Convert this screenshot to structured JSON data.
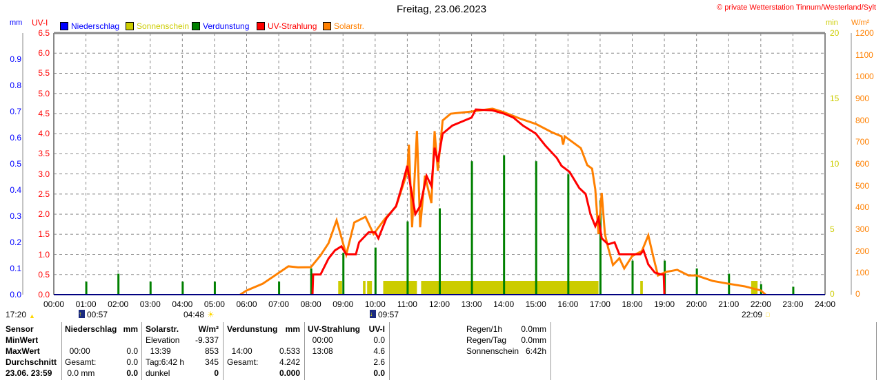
{
  "title": "Freitag, 23.06.2023",
  "copyright": "© private Wetterstation Tinnum/Westerland/Sylt",
  "axes": {
    "mm": "mm",
    "uv": "UV-I",
    "min": "min",
    "wm2": "W/m²"
  },
  "legend": [
    {
      "label": "Niederschlag",
      "color": "#0000ff",
      "text": "#0000ff"
    },
    {
      "label": "Sonnenschein",
      "color": "#cccc00",
      "text": "#cccc00"
    },
    {
      "label": "Verdunstung",
      "color": "#008000",
      "text": "#0000ff"
    },
    {
      "label": "UV-Strahlung",
      "color": "#ff0000",
      "text": "#ff0000"
    },
    {
      "label": "Solarstr.",
      "color": "#ff8000",
      "text": "#ff8000"
    }
  ],
  "chart_data": {
    "type": "line",
    "title": "Freitag, 23.06.2023",
    "x_ticks": [
      "00:00",
      "01:00",
      "02:00",
      "03:00",
      "04:00",
      "05:00",
      "06:00",
      "07:00",
      "08:00",
      "09:00",
      "10:00",
      "11:00",
      "12:00",
      "13:00",
      "14:00",
      "15:00",
      "16:00",
      "17:00",
      "18:00",
      "19:00",
      "20:00",
      "21:00",
      "22:00",
      "23:00",
      "24:00"
    ],
    "mm_ticks": [
      "0.0",
      "0.1",
      "0.2",
      "0.3",
      "0.4",
      "0.5",
      "0.6",
      "0.7",
      "0.8",
      "0.9"
    ],
    "uv_ticks": [
      "0.0",
      "0.5",
      "1.0",
      "1.5",
      "2.0",
      "2.5",
      "3.0",
      "3.5",
      "4.0",
      "4.5",
      "5.0",
      "5.5",
      "6.0",
      "6.5"
    ],
    "min_ticks": [
      "0",
      "5",
      "10",
      "15",
      "20"
    ],
    "wm2_ticks": [
      "0",
      "100",
      "200",
      "300",
      "400",
      "500",
      "600",
      "700",
      "800",
      "900",
      "1000",
      "1100",
      "1200"
    ],
    "xlim": [
      0,
      24
    ],
    "uv_ylim": [
      0,
      6.5
    ],
    "mm_ylim": [
      0,
      1.0
    ],
    "wm2_ylim": [
      0,
      1200
    ],
    "solar": [
      [
        5.8,
        0
      ],
      [
        6,
        19
      ],
      [
        6.5,
        50
      ],
      [
        7,
        100
      ],
      [
        7.3,
        130
      ],
      [
        7.6,
        125
      ],
      [
        8,
        126
      ],
      [
        8.3,
        180
      ],
      [
        8.55,
        236
      ],
      [
        8.8,
        341
      ],
      [
        9.1,
        183
      ],
      [
        9.35,
        331
      ],
      [
        9.7,
        357
      ],
      [
        9.95,
        278
      ],
      [
        10.3,
        347
      ],
      [
        10.65,
        404
      ],
      [
        11,
        562
      ],
      [
        11.05,
        688
      ],
      [
        11.15,
        309
      ],
      [
        11.3,
        751
      ],
      [
        11.4,
        309
      ],
      [
        11.55,
        546
      ],
      [
        11.75,
        420
      ],
      [
        11.85,
        750
      ],
      [
        11.95,
        568
      ],
      [
        12.1,
        799
      ],
      [
        12.35,
        830
      ],
      [
        13,
        840
      ],
      [
        13.65,
        853
      ],
      [
        14,
        837
      ],
      [
        14.5,
        808
      ],
      [
        15,
        783
      ],
      [
        15.5,
        745
      ],
      [
        15.8,
        726
      ],
      [
        15.85,
        688
      ],
      [
        15.9,
        726
      ],
      [
        16.4,
        672
      ],
      [
        16.6,
        594
      ],
      [
        16.75,
        578
      ],
      [
        16.85,
        483
      ],
      [
        16.95,
        278
      ],
      [
        17.05,
        467
      ],
      [
        17.15,
        278
      ],
      [
        17.25,
        215
      ],
      [
        17.4,
        136
      ],
      [
        17.6,
        167
      ],
      [
        17.75,
        120
      ],
      [
        18,
        177
      ],
      [
        18.3,
        200
      ],
      [
        18.5,
        272
      ],
      [
        18.65,
        177
      ],
      [
        18.8,
        88
      ],
      [
        19.05,
        104
      ],
      [
        19.4,
        114
      ],
      [
        19.75,
        88
      ],
      [
        20,
        88
      ],
      [
        20.5,
        63
      ],
      [
        21,
        50
      ],
      [
        21.5,
        38
      ],
      [
        22,
        19
      ],
      [
        22.15,
        0
      ]
    ],
    "uv": [
      [
        8.05,
        0
      ],
      [
        8.07,
        0.5
      ],
      [
        8.3,
        0.5
      ],
      [
        8.55,
        0.9
      ],
      [
        8.75,
        1.1
      ],
      [
        8.95,
        1.2
      ],
      [
        9.1,
        1.0
      ],
      [
        9.4,
        1.0
      ],
      [
        9.5,
        1.3
      ],
      [
        9.8,
        1.55
      ],
      [
        10,
        1.55
      ],
      [
        10.1,
        1.4
      ],
      [
        10.35,
        1.9
      ],
      [
        10.65,
        2.2
      ],
      [
        10.8,
        2.6
      ],
      [
        11,
        3.2
      ],
      [
        11.1,
        2.7
      ],
      [
        11.25,
        2.0
      ],
      [
        11.4,
        2.2
      ],
      [
        11.6,
        2.95
      ],
      [
        11.75,
        2.7
      ],
      [
        11.85,
        3.65
      ],
      [
        11.95,
        3.3
      ],
      [
        12.1,
        4.0
      ],
      [
        12.4,
        4.2
      ],
      [
        12.7,
        4.3
      ],
      [
        13,
        4.4
      ],
      [
        13.13,
        4.6
      ],
      [
        13.65,
        4.58
      ],
      [
        14,
        4.5
      ],
      [
        14.3,
        4.4
      ],
      [
        14.6,
        4.2
      ],
      [
        15,
        4.0
      ],
      [
        15.3,
        3.7
      ],
      [
        15.65,
        3.4
      ],
      [
        15.8,
        3.2
      ],
      [
        16.05,
        3.05
      ],
      [
        16.35,
        2.65
      ],
      [
        16.55,
        2.5
      ],
      [
        16.7,
        2.0
      ],
      [
        16.85,
        1.7
      ],
      [
        16.95,
        1.9
      ],
      [
        17.05,
        1.4
      ],
      [
        17.25,
        1.25
      ],
      [
        17.45,
        1.3
      ],
      [
        17.6,
        1.0
      ],
      [
        18.25,
        1.0
      ],
      [
        18.35,
        1.1
      ],
      [
        18.5,
        0.75
      ],
      [
        18.7,
        0.55
      ],
      [
        18.9,
        0.5
      ],
      [
        18.98,
        0.5
      ],
      [
        19,
        0
      ]
    ],
    "verdunstung": [
      [
        1,
        0.05
      ],
      [
        2,
        0.08
      ],
      [
        3,
        0.05
      ],
      [
        4,
        0.05
      ],
      [
        5,
        0.05
      ],
      [
        7,
        0.05
      ],
      [
        8,
        0.1
      ],
      [
        9,
        0.16
      ],
      [
        10,
        0.18
      ],
      [
        11,
        0.28
      ],
      [
        12,
        0.33
      ],
      [
        13,
        0.51
      ],
      [
        14,
        0.533
      ],
      [
        15,
        0.51
      ],
      [
        16,
        0.46
      ],
      [
        17,
        0.36
      ],
      [
        18,
        0.13
      ],
      [
        19,
        0.13
      ],
      [
        20,
        0.1
      ],
      [
        21,
        0.08
      ],
      [
        22,
        0.04
      ],
      [
        23,
        0.03
      ]
    ],
    "sonnenschein": [
      [
        8.85,
        8.97
      ],
      [
        9.62,
        9.7
      ],
      [
        9.75,
        9.9
      ],
      [
        10.25,
        11.3
      ],
      [
        11.43,
        16.95
      ],
      [
        18.25,
        18.33
      ],
      [
        21.7,
        21.9
      ]
    ]
  },
  "events": {
    "left": "17:20",
    "moonrise": "00:57",
    "sunrise": "04:48",
    "moonset": "09:57",
    "sunset": "22:09"
  },
  "table": {
    "col0": [
      "Sensor",
      "MinWert",
      "MaxWert",
      "Durchschnitt",
      "23.06. 23:59"
    ],
    "nied": {
      "h": "Niederschlag",
      "u": "mm",
      "r2": [
        "00:00",
        "0.0"
      ],
      "r3": [
        "Gesamt:",
        "0.0"
      ],
      "r4": [
        "0.0 mm",
        "0.0"
      ]
    },
    "solar": {
      "h": "Solarstr.",
      "u": "W/m²",
      "r1": [
        "Elevation",
        "-9.337"
      ],
      "r2": [
        "13:39",
        "853"
      ],
      "r3": [
        "Tag:6:42 h",
        "345"
      ],
      "r4": [
        "dunkel",
        "0"
      ]
    },
    "verd": {
      "h": "Verdunstung",
      "u": "mm",
      "r2": [
        "14:00",
        "0.533"
      ],
      "r3": [
        "Gesamt:",
        "4.242"
      ],
      "r4": [
        "",
        "0.000"
      ]
    },
    "uv": {
      "h": "UV-Strahlung",
      "u": "UV-I",
      "r1": [
        "00:00",
        "0.0"
      ],
      "r2": [
        "13:08",
        "4.6"
      ],
      "r3": [
        "",
        "2.6"
      ],
      "r4": [
        "",
        "0.0"
      ]
    },
    "extra": [
      [
        "Regen/1h",
        "0.0mm"
      ],
      [
        "Regen/Tag",
        "0.0mm"
      ],
      [
        "Sonnenschein",
        "6:42h"
      ]
    ]
  }
}
